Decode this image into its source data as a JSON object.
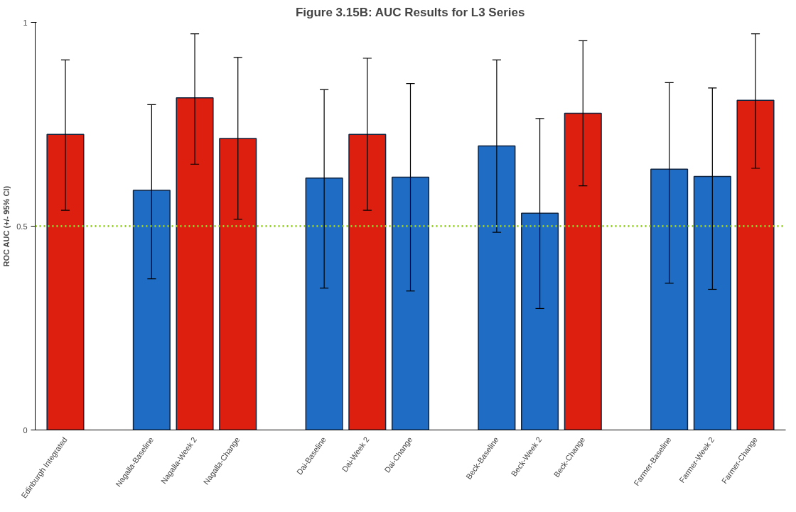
{
  "chart_data": {
    "type": "bar",
    "title": "Figure 3.15B: AUC Results for L3 Series",
    "ylabel": "ROC AUC (+/- 95% CI)",
    "categories": [
      "Edinburgh Integrated",
      null,
      "Nagalla-Baseline",
      "Nagalla-Week 2",
      "Nagalla-Change",
      null,
      "Dai-Baseline",
      "Dai-Week 2",
      "Dai-Change",
      null,
      "Beck-Baseline",
      "Beck-Week 2",
      "Beck-Change",
      null,
      "Farmer-Baseline",
      "Farmer-Week 2",
      "Farmer-Change"
    ],
    "values": [
      0.725,
      null,
      0.588,
      0.815,
      0.715,
      null,
      0.618,
      0.725,
      0.62,
      null,
      0.697,
      0.532,
      0.777,
      null,
      0.64,
      0.622,
      0.809
    ],
    "colors": [
      "#dd1f0f",
      "#ffffff",
      "#1f6cc4",
      "#dd1f0f",
      "#dd1f0f",
      "#ffffff",
      "#1f6cc4",
      "#dd1f0f",
      "#1f6cc4",
      "#ffffff",
      "#1f6cc4",
      "#1f6cc4",
      "#dd1f0f",
      "#ffffff",
      "#1f6cc4",
      "#1f6cc4",
      "#dd1f0f"
    ],
    "errors": [
      [
        0.539,
        0.908
      ],
      null,
      [
        0.371,
        0.798
      ],
      [
        0.652,
        0.972
      ],
      [
        0.517,
        0.914
      ],
      null,
      [
        0.348,
        0.835
      ],
      [
        0.539,
        0.912
      ],
      [
        0.341,
        0.85
      ],
      null,
      [
        0.485,
        0.908
      ],
      [
        0.298,
        0.764
      ],
      [
        0.599,
        0.955
      ],
      null,
      [
        0.36,
        0.852
      ],
      [
        0.345,
        0.839
      ],
      [
        0.642,
        0.972
      ]
    ],
    "ylim": [
      0,
      1
    ],
    "yticks": [
      0,
      0.5,
      1
    ],
    "grid": false,
    "ref_lines": [
      {
        "axis": "y",
        "value": 0.5,
        "label": null,
        "color": "#9acd32",
        "line_style": "dotted"
      }
    ]
  }
}
